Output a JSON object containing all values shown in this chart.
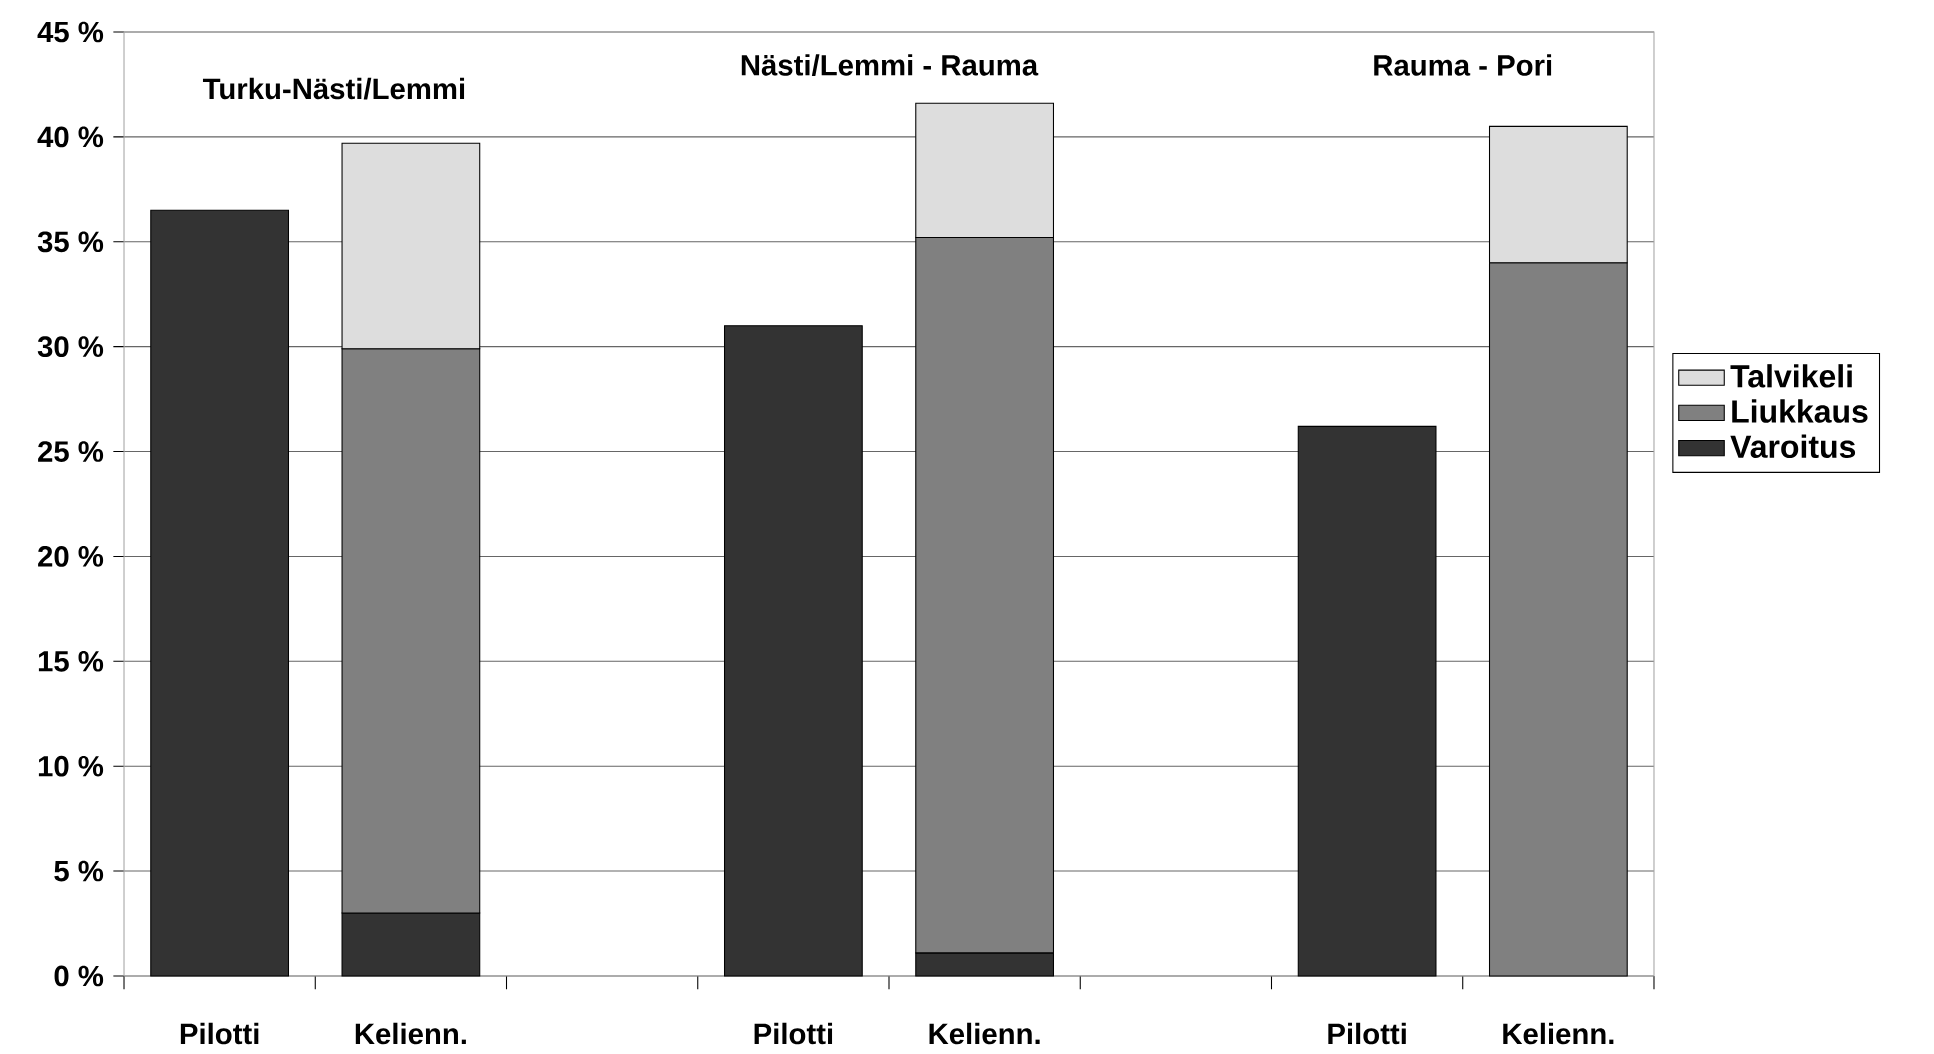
{
  "chart_data": {
    "type": "bar",
    "stacked": true,
    "categories": [
      "Pilotti",
      "Kelienn.",
      null,
      "Pilotti",
      "Kelienn.",
      null,
      "Pilotti",
      "Kelienn."
    ],
    "series": [
      {
        "name": "Varoitus",
        "color": "#333333",
        "values": [
          36.5,
          3.0,
          null,
          31.0,
          1.1,
          null,
          26.2,
          null
        ]
      },
      {
        "name": "Liukkaus",
        "color": "#808080",
        "values": [
          null,
          26.9,
          null,
          null,
          34.1,
          null,
          null,
          34.0
        ]
      },
      {
        "name": "Talvikeli",
        "color": "#dddddd",
        "values": [
          null,
          9.8,
          null,
          null,
          6.4,
          null,
          null,
          6.5
        ]
      }
    ],
    "ylim": [
      0,
      45
    ],
    "yticks": [
      {
        "value": 0,
        "label": "0 %"
      },
      {
        "value": 5,
        "label": "5 %"
      },
      {
        "value": 10,
        "label": "10 %"
      },
      {
        "value": 15,
        "label": "15 %"
      },
      {
        "value": 20,
        "label": "20 %"
      },
      {
        "value": 25,
        "label": "25 %"
      },
      {
        "value": 30,
        "label": "30 %"
      },
      {
        "value": 35,
        "label": "35 %"
      },
      {
        "value": 40,
        "label": "40 %"
      },
      {
        "value": 45,
        "label": "45 %"
      }
    ],
    "annotations": [
      "Turku-Nästi/Lemmi",
      "Nästi/Lemmi - Rauma",
      "Rauma - Pori"
    ],
    "grid": "y",
    "legend": "right"
  }
}
